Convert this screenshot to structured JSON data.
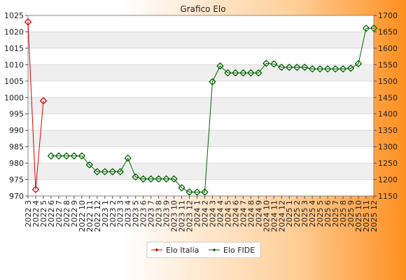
{
  "chart_data": {
    "type": "line",
    "title": "Grafico Elo",
    "categories": [
      "2022 3",
      "2022 4",
      "2022 5",
      "2022 6",
      "2022 7",
      "2022 8",
      "2022 9",
      "2022 10",
      "2022 11",
      "2022 12",
      "2023 1",
      "2023 2",
      "2023 3",
      "2023 4",
      "2023 5",
      "2023 6",
      "2023 7",
      "2023 8",
      "2023 9",
      "2023 10",
      "2023 11",
      "2023 12",
      "2024 1",
      "2024 2",
      "2024 3",
      "2024 4",
      "2024 5",
      "2024 6",
      "2024 7",
      "2024 8",
      "2024 9",
      "2024 10",
      "2024 11",
      "2024 12",
      "2025 1",
      "2025 2",
      "2025 3",
      "2025 4",
      "2025 5",
      "2025 6",
      "2025 7",
      "2025 8",
      "2025 9",
      "2025 10",
      "2025 11",
      "2025 12"
    ],
    "y_left": {
      "range": [
        970,
        1025
      ],
      "ticks": [
        "970",
        "975",
        "980",
        "985",
        "990",
        "995",
        "1000",
        "1005",
        "1010",
        "1015",
        "1020",
        "1025"
      ]
    },
    "y_right": {
      "range": [
        1150,
        1700
      ],
      "ticks": [
        "1150",
        "1200",
        "1250",
        "1300",
        "1350",
        "1400",
        "1450",
        "1500",
        "1550",
        "1600",
        "1650",
        "1700"
      ]
    },
    "legend_position": "bottom-center",
    "grid": "horizontal-bands",
    "series": [
      {
        "name": "Elo Italia",
        "axis": "left",
        "color": "#dd0000",
        "marker": "diamond",
        "values": [
          1023,
          972,
          999,
          null,
          null,
          null,
          null,
          null,
          null,
          null,
          null,
          null,
          null,
          null,
          null,
          null,
          null,
          null,
          null,
          null,
          null,
          null,
          null,
          null,
          null,
          null,
          null,
          null,
          null,
          null,
          null,
          null,
          null,
          null,
          null,
          null,
          null,
          null,
          null,
          null,
          null,
          null,
          null,
          null,
          null,
          null
        ]
      },
      {
        "name": "Elo FIDE",
        "axis": "right",
        "color": "#006600",
        "marker": "circle",
        "values": [
          null,
          null,
          null,
          1272,
          1272,
          1272,
          1272,
          1272,
          1245,
          1224,
          1224,
          1224,
          1224,
          1265,
          1208,
          1202,
          1202,
          1202,
          1202,
          1202,
          1175,
          1162,
          1162,
          1162,
          1498,
          1546,
          1525,
          1525,
          1525,
          1525,
          1525,
          1554,
          1552,
          1542,
          1542,
          1542,
          1542,
          1537,
          1537,
          1537,
          1537,
          1537,
          1539,
          1553,
          1661,
          1661
        ]
      }
    ]
  }
}
